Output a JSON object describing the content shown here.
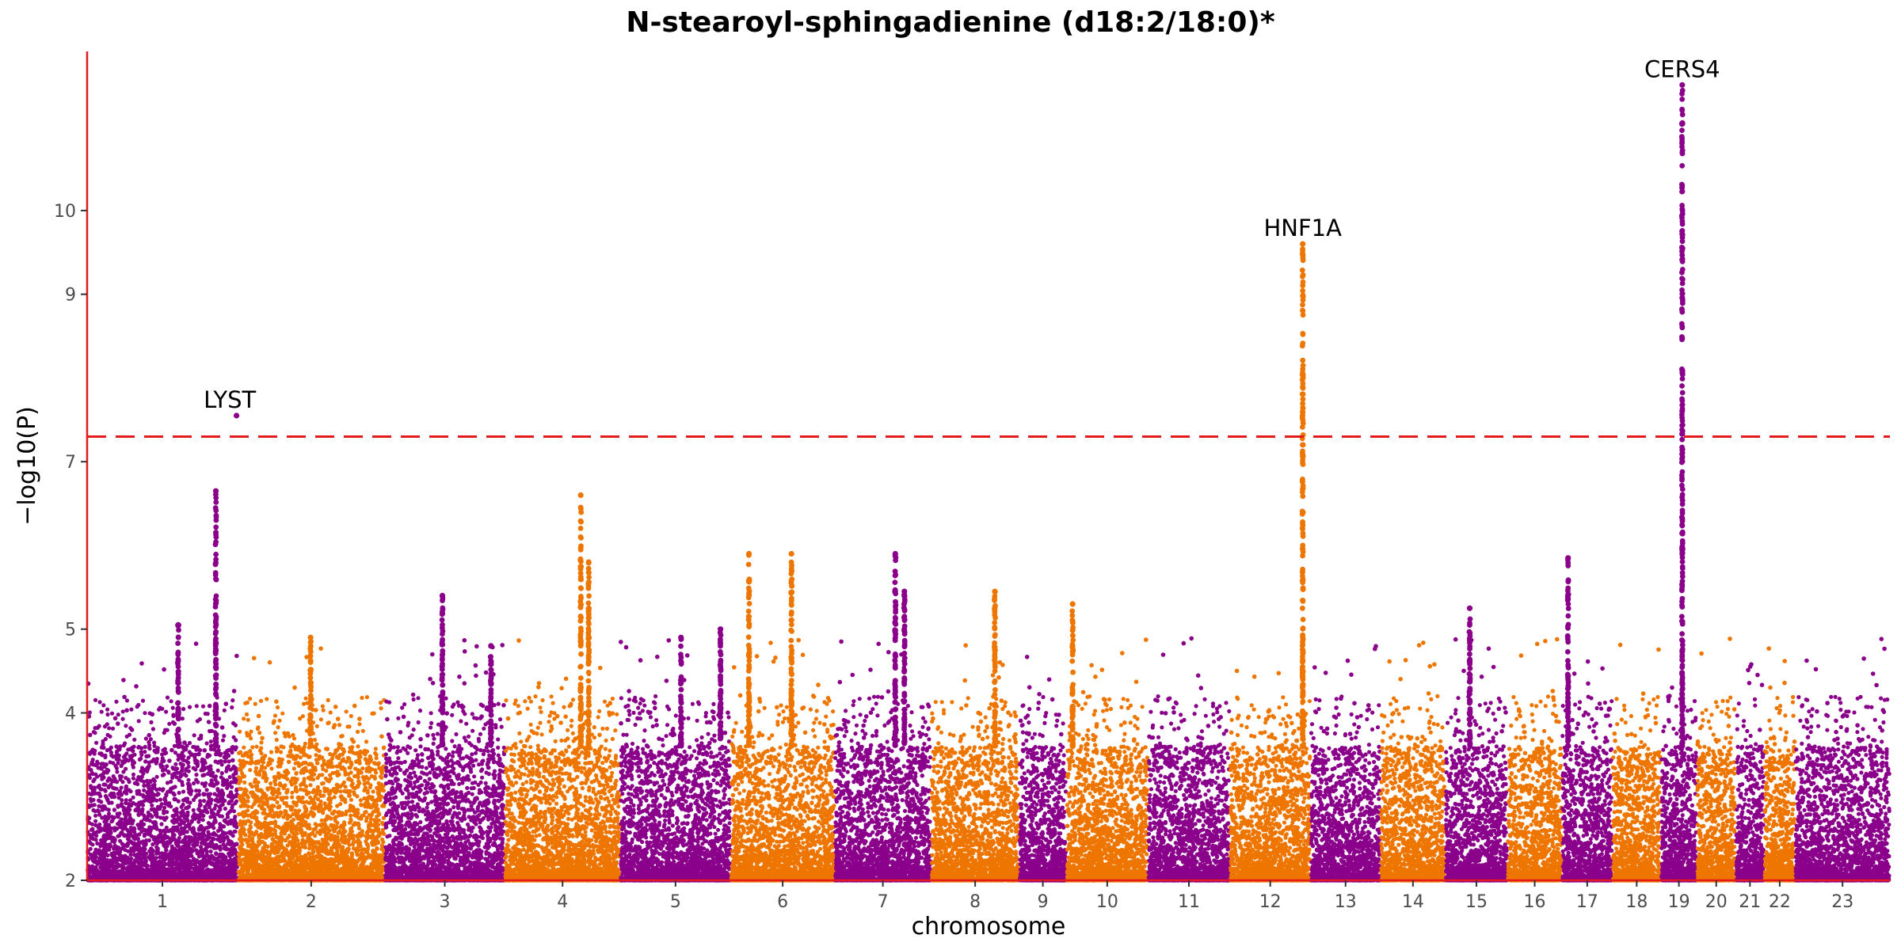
{
  "chart_data": {
    "type": "scatter",
    "subtype": "manhattan",
    "title": "N-stearoyl-sphingadienine (d18:2/18:0)*",
    "xlabel": "chromosome",
    "ylabel": "−log10(P)",
    "ylim": [
      2,
      11.9
    ],
    "yticks": [
      2,
      4,
      5,
      7,
      9,
      10
    ],
    "ytick_labels": [
      "2",
      "4",
      "5",
      "7",
      "9",
      "10"
    ],
    "significance_threshold": 7.3,
    "threshold_style": "dashed",
    "threshold_color": "#e41a1c",
    "colors": {
      "odd": "#8b008b",
      "even": "#ee7600",
      "axis": "#e41a1c"
    },
    "grid": false,
    "legend": "none",
    "chromosomes": [
      "1",
      "2",
      "3",
      "4",
      "5",
      "6",
      "7",
      "8",
      "9",
      "10",
      "11",
      "12",
      "13",
      "14",
      "15",
      "16",
      "17",
      "18",
      "19",
      "20",
      "21",
      "22",
      "23"
    ],
    "chromosome_extent": [
      [
        0,
        248
      ],
      [
        248,
        490
      ],
      [
        490,
        688
      ],
      [
        688,
        878
      ],
      [
        878,
        1060
      ],
      [
        1060,
        1231
      ],
      [
        1231,
        1390
      ],
      [
        1390,
        1535
      ],
      [
        1535,
        1613
      ],
      [
        1613,
        1747
      ],
      [
        1747,
        1882
      ],
      [
        1882,
        2015
      ],
      [
        2015,
        2130
      ],
      [
        2130,
        2237
      ],
      [
        2237,
        2339
      ],
      [
        2339,
        2429
      ],
      [
        2429,
        2512
      ],
      [
        2512,
        2592
      ],
      [
        2592,
        2651
      ],
      [
        2651,
        2715
      ],
      [
        2715,
        2762
      ],
      [
        2762,
        2813
      ],
      [
        2813,
        2969
      ]
    ],
    "peaks": [
      {
        "chr": "1",
        "pos": 212,
        "top": 6.65,
        "sig": 7.55
      },
      {
        "chr": "1",
        "pos": 150,
        "top": 5.05
      },
      {
        "chr": "2",
        "pos": 120,
        "top": 4.9
      },
      {
        "chr": "3",
        "pos": 95,
        "top": 5.4
      },
      {
        "chr": "3",
        "pos": 175,
        "top": 4.8
      },
      {
        "chr": "4",
        "pos": 125,
        "top": 6.6
      },
      {
        "chr": "4",
        "pos": 138,
        "top": 5.8
      },
      {
        "chr": "5",
        "pos": 100,
        "top": 4.9
      },
      {
        "chr": "5",
        "pos": 165,
        "top": 5.0
      },
      {
        "chr": "6",
        "pos": 30,
        "top": 5.9
      },
      {
        "chr": "6",
        "pos": 100,
        "top": 5.9
      },
      {
        "chr": "7",
        "pos": 100,
        "top": 5.9
      },
      {
        "chr": "7",
        "pos": 115,
        "top": 5.45
      },
      {
        "chr": "8",
        "pos": 105,
        "top": 5.45
      },
      {
        "chr": "10",
        "pos": 10,
        "top": 5.3
      },
      {
        "chr": "12",
        "pos": 120,
        "top": 9.6
      },
      {
        "chr": "15",
        "pos": 40,
        "top": 5.25
      },
      {
        "chr": "17",
        "pos": 10,
        "top": 5.85
      },
      {
        "chr": "19",
        "pos": 35,
        "top": 11.5
      }
    ],
    "annotations": [
      {
        "gene": "LYST",
        "chr": "1",
        "pos": 235,
        "y": 7.55
      },
      {
        "gene": "HNF1A",
        "chr": "12",
        "pos": 120,
        "y": 9.6
      },
      {
        "gene": "CERS4",
        "chr": "19",
        "pos": 35,
        "y": 11.5
      }
    ]
  }
}
